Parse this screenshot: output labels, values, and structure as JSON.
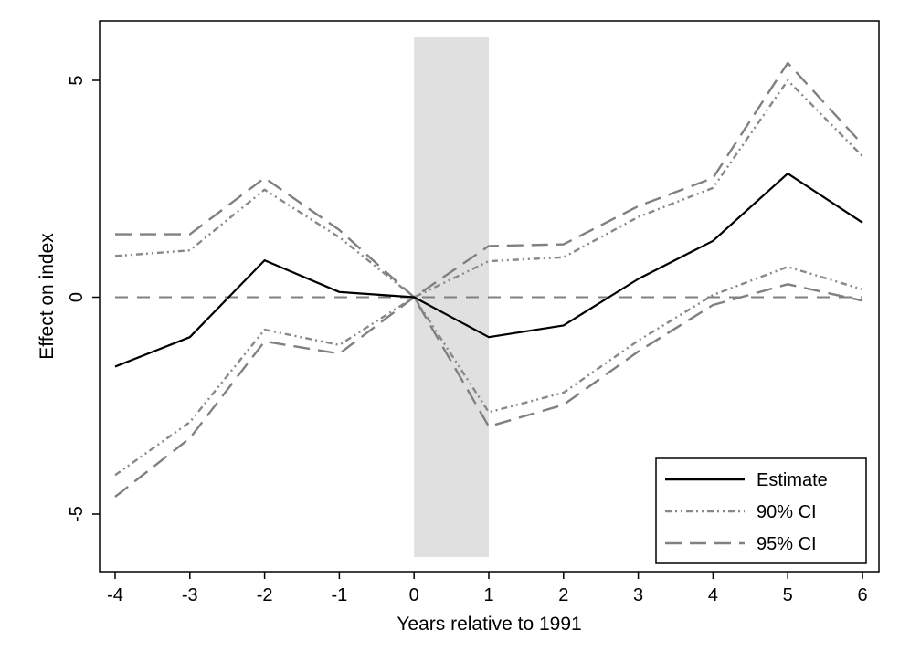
{
  "chart_data": {
    "type": "line",
    "title": "",
    "xlabel": "Years relative to 1991",
    "ylabel": "Effect on index",
    "x": [
      -4,
      -3,
      -2,
      -1,
      0,
      1,
      2,
      3,
      4,
      5,
      6
    ],
    "xlim": [
      -4,
      6
    ],
    "ylim": [
      -6.25,
      6.3
    ],
    "x_ticks": [
      -4,
      -3,
      -2,
      -1,
      0,
      1,
      2,
      3,
      4,
      5,
      6
    ],
    "y_ticks": [
      -5,
      0,
      5
    ],
    "x_tick_labels": [
      "-4",
      "-3",
      "-2",
      "-1",
      "0",
      "1",
      "2",
      "3",
      "4",
      "5",
      "6"
    ],
    "y_tick_labels": [
      "-5",
      "0",
      "5"
    ],
    "shaded_region": {
      "x_from": 0,
      "x_to": 1,
      "color": "#e0e0e0"
    },
    "reference_line": {
      "y": 0,
      "style": "dashed",
      "color": "#808080"
    },
    "grid": false,
    "legend_position": "bottom-right",
    "series": [
      {
        "name": "Estimate",
        "style": "solid",
        "color": "#000000",
        "values": [
          -1.6,
          -0.92,
          0.85,
          0.12,
          0.0,
          -0.92,
          -0.65,
          0.42,
          1.3,
          2.85,
          1.72
        ]
      },
      {
        "name": "90% CI",
        "role": "upper",
        "style": "dashdotdot",
        "color": "#888888",
        "values": [
          0.95,
          1.08,
          2.48,
          1.38,
          0.0,
          0.83,
          0.92,
          1.85,
          2.52,
          5.0,
          3.25
        ]
      },
      {
        "name": "90% CI",
        "role": "lower",
        "style": "dashdotdot",
        "color": "#888888",
        "values": [
          -4.1,
          -2.88,
          -0.75,
          -1.1,
          0.0,
          -2.65,
          -2.2,
          -1.0,
          0.05,
          0.7,
          0.18
        ]
      },
      {
        "name": "95% CI",
        "role": "upper",
        "style": "longdash",
        "color": "#808080",
        "values": [
          1.45,
          1.45,
          2.75,
          1.55,
          0.0,
          1.18,
          1.22,
          2.1,
          2.75,
          5.4,
          3.52
        ]
      },
      {
        "name": "95% CI",
        "role": "lower",
        "style": "longdash",
        "color": "#808080",
        "values": [
          -4.6,
          -3.25,
          -1.02,
          -1.3,
          0.0,
          -2.98,
          -2.48,
          -1.25,
          -0.18,
          0.3,
          -0.08
        ]
      }
    ],
    "legend": [
      {
        "label": "Estimate",
        "style": "solid",
        "color": "#000000"
      },
      {
        "label": "90% CI",
        "style": "dashdotdot",
        "color": "#888888"
      },
      {
        "label": "95% CI",
        "style": "longdash",
        "color": "#808080"
      }
    ]
  }
}
